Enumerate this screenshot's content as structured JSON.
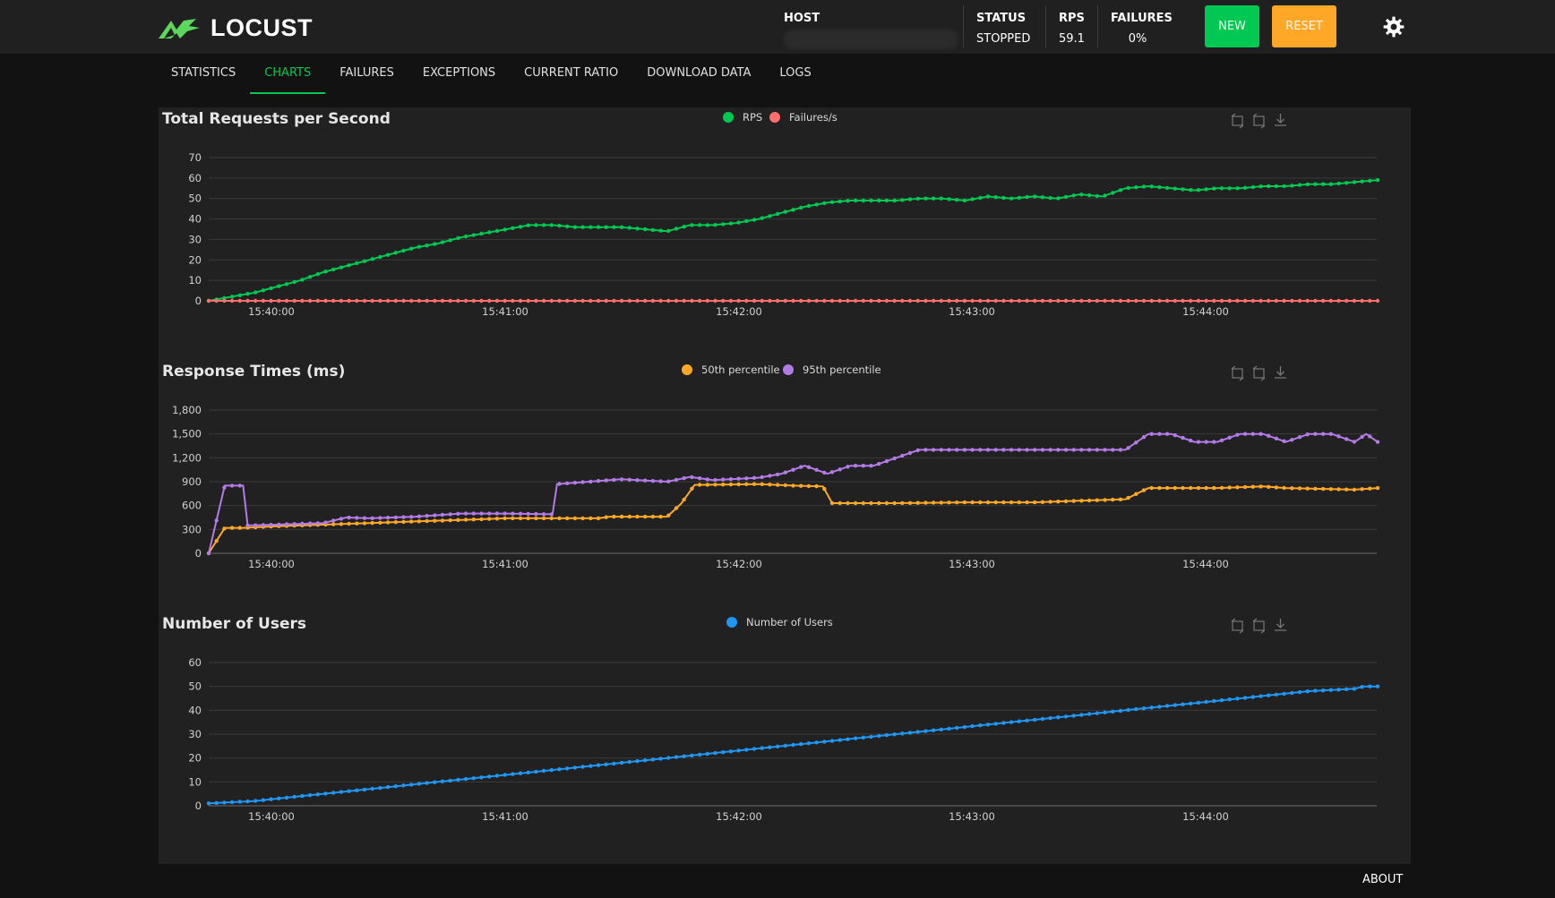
{
  "app": {
    "name": "LOCUST"
  },
  "header": {
    "host": {
      "label": "HOST",
      "value": ""
    },
    "status": {
      "label": "STATUS",
      "value": "STOPPED"
    },
    "rps": {
      "label": "RPS",
      "value": "59.1"
    },
    "failures": {
      "label": "FAILURES",
      "value": "0%"
    },
    "new_label": "NEW",
    "reset_label": "RESET"
  },
  "tabs": [
    {
      "label": "STATISTICS",
      "active": false
    },
    {
      "label": "CHARTS",
      "active": true
    },
    {
      "label": "FAILURES",
      "active": false
    },
    {
      "label": "EXCEPTIONS",
      "active": false
    },
    {
      "label": "CURRENT RATIO",
      "active": false
    },
    {
      "label": "DOWNLOAD DATA",
      "active": false
    },
    {
      "label": "LOGS",
      "active": false
    }
  ],
  "footer": {
    "about_label": "ABOUT"
  },
  "colors": {
    "green": "#00c853",
    "red": "#ff6d6d",
    "orange": "#ffa726",
    "purple": "#b27be6",
    "blue": "#2196f3"
  },
  "chart_data": [
    {
      "type": "line",
      "title": "Total Requests per Second",
      "x_ticks": [
        "15:40:00",
        "15:41:00",
        "15:42:00",
        "15:43:00",
        "15:44:00"
      ],
      "ylim": [
        0,
        70
      ],
      "y_ticks": [
        "0",
        "10",
        "20",
        "30",
        "40",
        "50",
        "60",
        "70"
      ],
      "legend_position": "top-center",
      "series": [
        {
          "name": "RPS",
          "color": "#00c853",
          "points": [
            [
              0,
              0
            ],
            [
              10,
              2
            ],
            [
              20,
              4
            ],
            [
              30,
              7
            ],
            [
              40,
              10
            ],
            [
              50,
              14
            ],
            [
              60,
              17
            ],
            [
              70,
              20
            ],
            [
              80,
              23
            ],
            [
              90,
              26
            ],
            [
              100,
              28
            ],
            [
              110,
              31
            ],
            [
              120,
              33
            ],
            [
              130,
              35
            ],
            [
              140,
              37
            ],
            [
              150,
              37
            ],
            [
              160,
              36
            ],
            [
              170,
              36
            ],
            [
              180,
              36
            ],
            [
              190,
              35
            ],
            [
              200,
              34
            ],
            [
              210,
              37
            ],
            [
              220,
              37
            ],
            [
              230,
              38
            ],
            [
              240,
              40
            ],
            [
              250,
              43
            ],
            [
              260,
              46
            ],
            [
              270,
              48
            ],
            [
              280,
              49
            ],
            [
              290,
              49
            ],
            [
              300,
              49
            ],
            [
              310,
              50
            ],
            [
              320,
              50
            ],
            [
              330,
              49
            ],
            [
              340,
              51
            ],
            [
              350,
              50
            ],
            [
              360,
              51
            ],
            [
              370,
              50
            ],
            [
              380,
              52
            ],
            [
              390,
              51
            ],
            [
              400,
              55
            ],
            [
              410,
              56
            ],
            [
              420,
              55
            ],
            [
              430,
              54
            ],
            [
              440,
              55
            ],
            [
              450,
              55
            ],
            [
              460,
              56
            ],
            [
              470,
              56
            ],
            [
              480,
              57
            ],
            [
              490,
              57
            ],
            [
              500,
              58
            ],
            [
              510,
              59
            ]
          ]
        },
        {
          "name": "Failures/s",
          "color": "#ff6d6d",
          "points": [
            [
              0,
              0
            ],
            [
              510,
              0
            ]
          ]
        }
      ]
    },
    {
      "type": "line",
      "title": "Response Times (ms)",
      "x_ticks": [
        "15:40:00",
        "15:41:00",
        "15:42:00",
        "15:43:00",
        "15:44:00"
      ],
      "ylim": [
        0,
        1800
      ],
      "y_ticks": [
        "0",
        "300",
        "600",
        "900",
        "1,200",
        "1,500",
        "1,800"
      ],
      "legend_position": "top-center",
      "series": [
        {
          "name": "50th percentile",
          "color": "#ffa726",
          "points": [
            [
              0,
              0
            ],
            [
              7,
              320
            ],
            [
              15,
              320
            ],
            [
              30,
              340
            ],
            [
              50,
              360
            ],
            [
              70,
              380
            ],
            [
              90,
              400
            ],
            [
              110,
              420
            ],
            [
              130,
              440
            ],
            [
              150,
              440
            ],
            [
              170,
              440
            ],
            [
              175,
              460
            ],
            [
              200,
              460
            ],
            [
              206,
              620
            ],
            [
              212,
              860
            ],
            [
              240,
              870
            ],
            [
              255,
              850
            ],
            [
              268,
              840
            ],
            [
              272,
              630
            ],
            [
              300,
              630
            ],
            [
              330,
              640
            ],
            [
              360,
              640
            ],
            [
              380,
              660
            ],
            [
              400,
              680
            ],
            [
              410,
              820
            ],
            [
              440,
              820
            ],
            [
              460,
              840
            ],
            [
              470,
              820
            ],
            [
              500,
              800
            ],
            [
              510,
              820
            ]
          ]
        },
        {
          "name": "95th percentile",
          "color": "#b27be6",
          "points": [
            [
              0,
              0
            ],
            [
              7,
              850
            ],
            [
              15,
              850
            ],
            [
              17,
              350
            ],
            [
              30,
              360
            ],
            [
              50,
              380
            ],
            [
              60,
              450
            ],
            [
              70,
              440
            ],
            [
              90,
              460
            ],
            [
              110,
              500
            ],
            [
              130,
              500
            ],
            [
              150,
              490
            ],
            [
              152,
              870
            ],
            [
              180,
              930
            ],
            [
              200,
              900
            ],
            [
              210,
              960
            ],
            [
              220,
              920
            ],
            [
              240,
              950
            ],
            [
              250,
              1000
            ],
            [
              260,
              1100
            ],
            [
              270,
              1000
            ],
            [
              280,
              1100
            ],
            [
              290,
              1100
            ],
            [
              300,
              1200
            ],
            [
              310,
              1300
            ],
            [
              340,
              1300
            ],
            [
              370,
              1300
            ],
            [
              400,
              1300
            ],
            [
              410,
              1500
            ],
            [
              420,
              1500
            ],
            [
              430,
              1400
            ],
            [
              440,
              1400
            ],
            [
              450,
              1500
            ],
            [
              460,
              1500
            ],
            [
              470,
              1400
            ],
            [
              480,
              1500
            ],
            [
              490,
              1500
            ],
            [
              500,
              1400
            ],
            [
              505,
              1500
            ],
            [
              510,
              1400
            ]
          ]
        }
      ]
    },
    {
      "type": "line",
      "title": "Number of Users",
      "x_ticks": [
        "15:40:00",
        "15:41:00",
        "15:42:00",
        "15:43:00",
        "15:44:00"
      ],
      "ylim": [
        0,
        60
      ],
      "y_ticks": [
        "0",
        "10",
        "20",
        "30",
        "40",
        "50",
        "60"
      ],
      "legend_position": "top-center",
      "series": [
        {
          "name": "Number of Users",
          "color": "#2196f3",
          "points": [
            [
              0,
              1
            ],
            [
              20,
              2
            ],
            [
              40,
              4
            ],
            [
              60,
              6
            ],
            [
              80,
              8
            ],
            [
              100,
              10
            ],
            [
              120,
              12
            ],
            [
              140,
              14
            ],
            [
              160,
              16
            ],
            [
              180,
              18
            ],
            [
              200,
              20
            ],
            [
              220,
              22
            ],
            [
              240,
              24
            ],
            [
              260,
              26
            ],
            [
              280,
              28
            ],
            [
              300,
              30
            ],
            [
              320,
              32
            ],
            [
              340,
              34
            ],
            [
              360,
              36
            ],
            [
              380,
              38
            ],
            [
              400,
              40
            ],
            [
              420,
              42
            ],
            [
              440,
              44
            ],
            [
              460,
              46
            ],
            [
              480,
              48
            ],
            [
              500,
              49
            ],
            [
              504,
              50
            ],
            [
              510,
              50
            ]
          ]
        }
      ]
    }
  ]
}
